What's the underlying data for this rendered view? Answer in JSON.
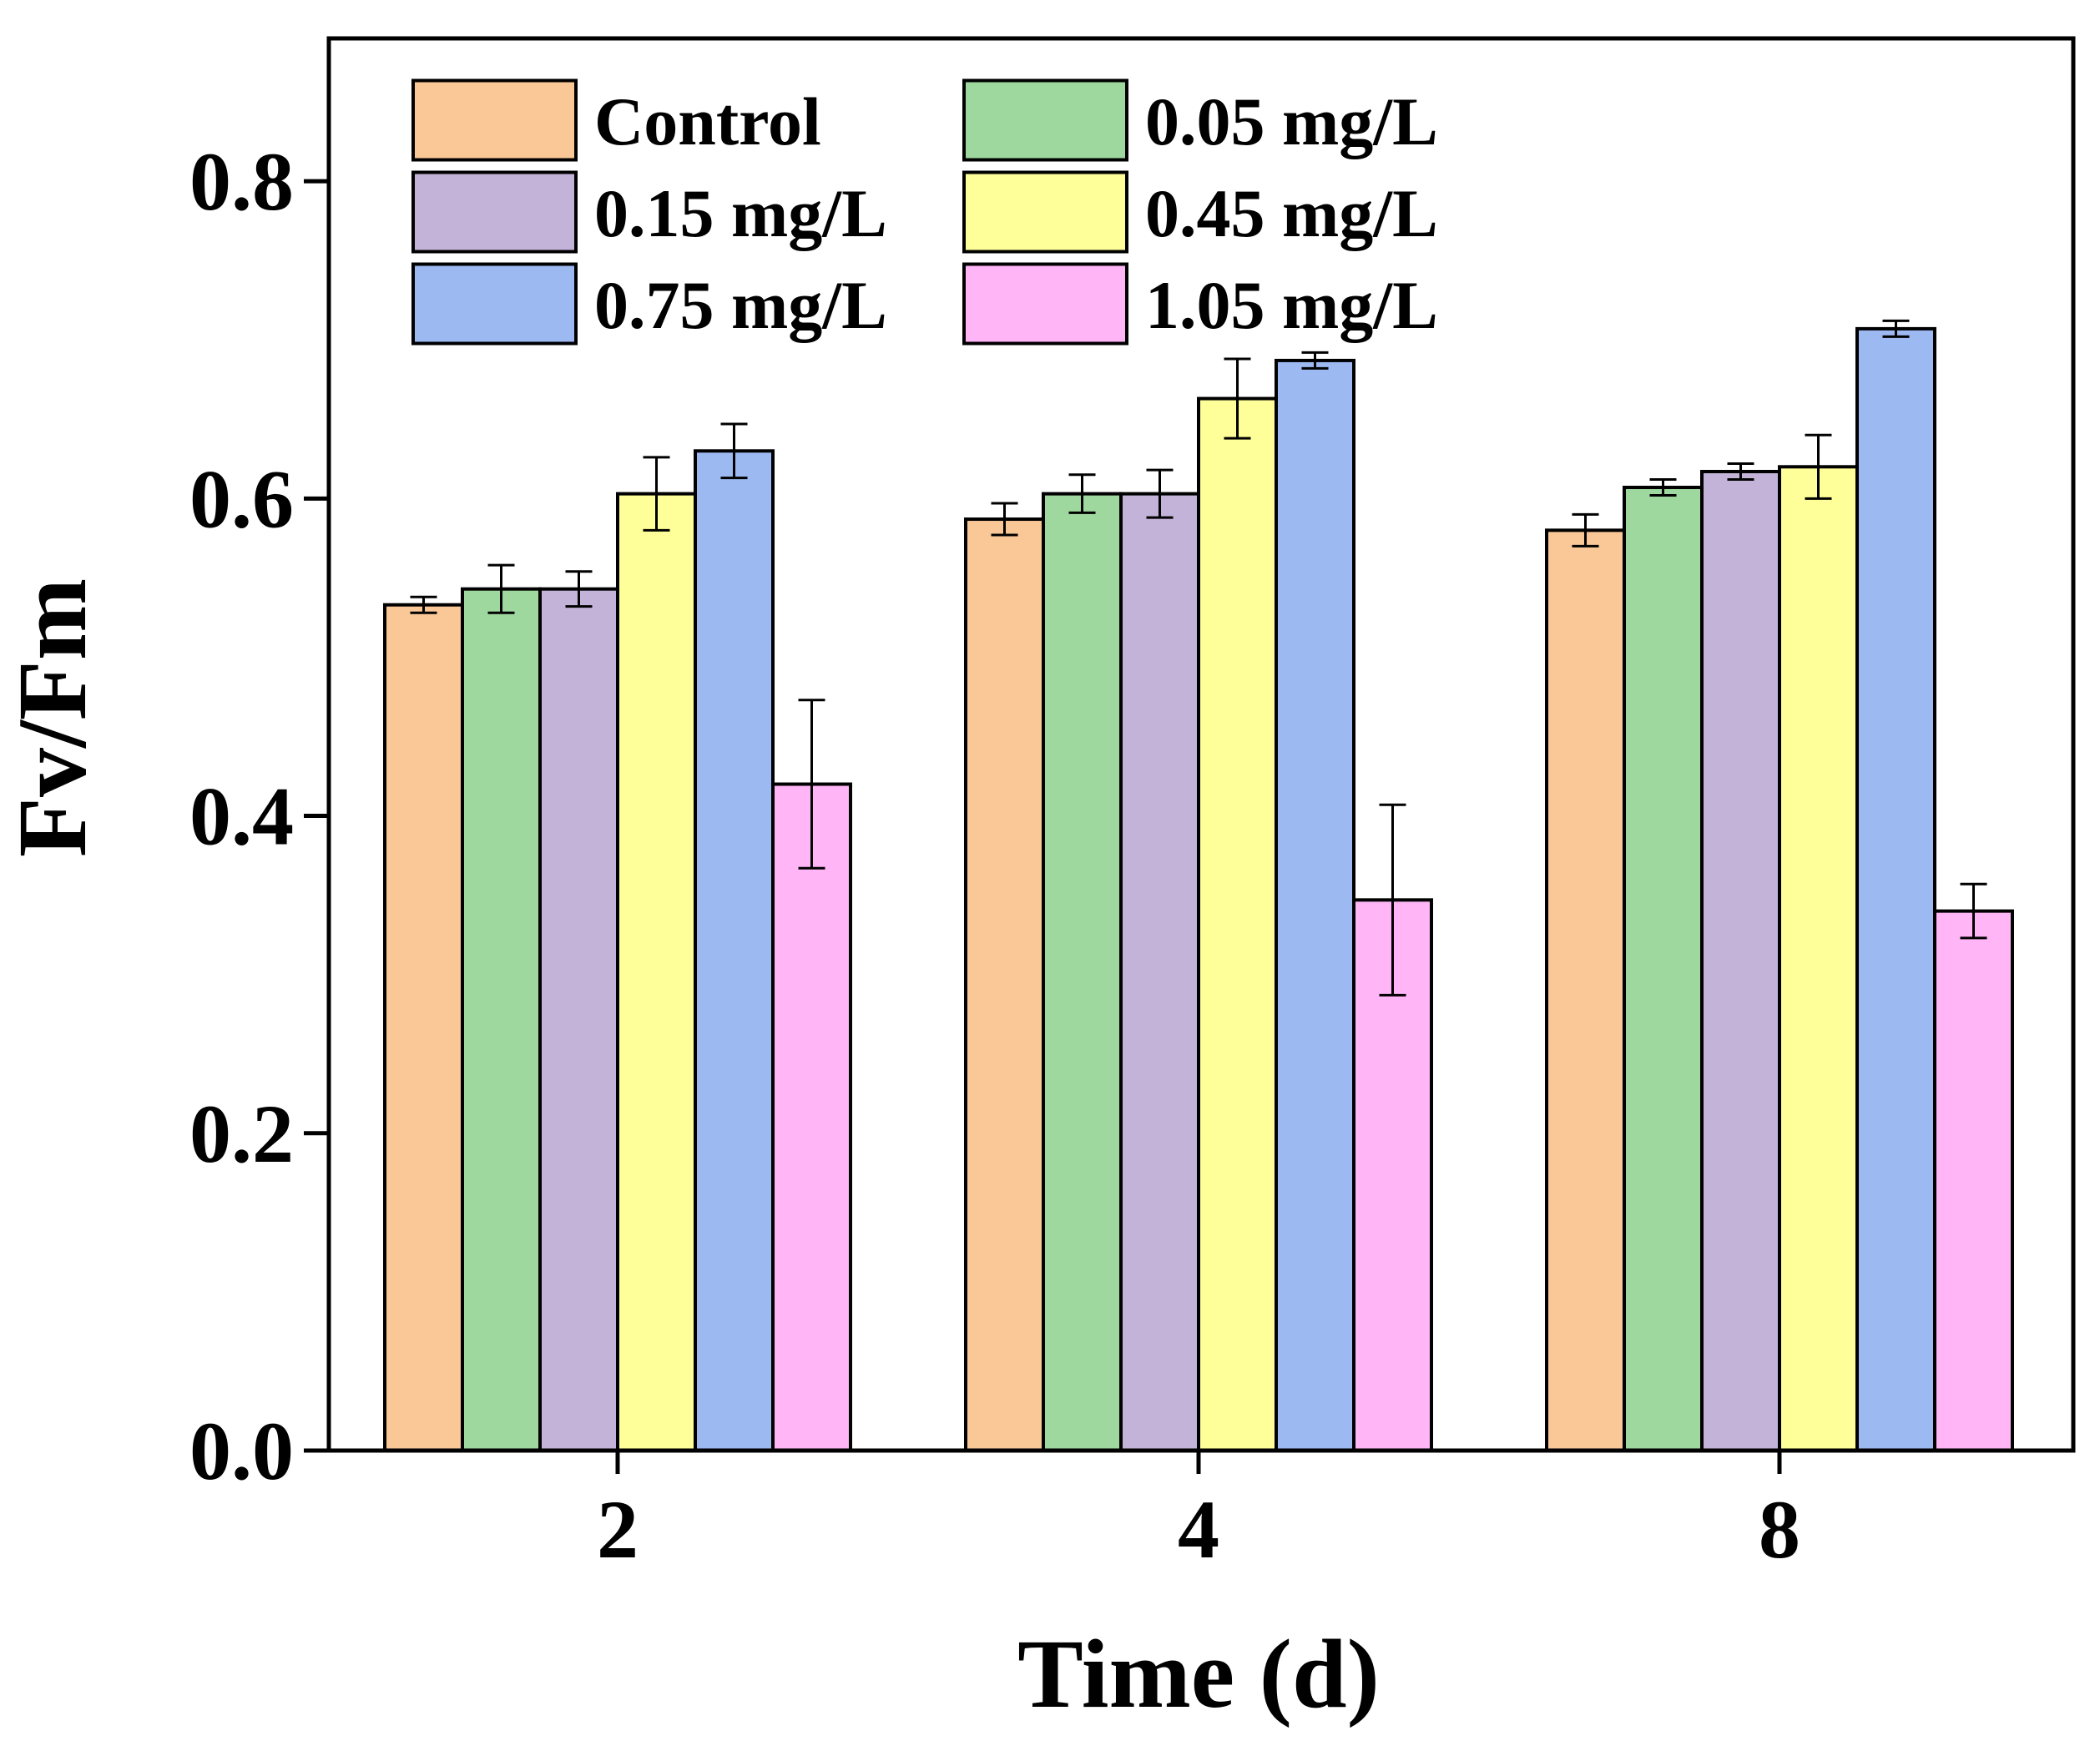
{
  "chart_data": {
    "type": "bar",
    "xlabel": "Time (d)",
    "ylabel": "Fv/Fm",
    "ylim": [
      0,
      0.89
    ],
    "yticks": [
      "0.0",
      "0.2",
      "0.4",
      "0.6",
      "0.8"
    ],
    "ytick_values": [
      0,
      0.2,
      0.4,
      0.6,
      0.8
    ],
    "categories": [
      "2",
      "4",
      "8"
    ],
    "grid": false,
    "legend_position": "top-left",
    "series": [
      {
        "name": "Control",
        "color": "#F9C896",
        "values": [
          0.533,
          0.587,
          0.58
        ],
        "errors": [
          0.005,
          0.01,
          0.01
        ]
      },
      {
        "name": "0.05 mg/L",
        "color": "#9ED89E",
        "values": [
          0.543,
          0.603,
          0.607
        ],
        "errors": [
          0.015,
          0.012,
          0.005
        ]
      },
      {
        "name": "0.15 mg/L",
        "color": "#C3B3D8",
        "values": [
          0.543,
          0.603,
          0.617
        ],
        "errors": [
          0.011,
          0.015,
          0.005
        ]
      },
      {
        "name": "0.45 mg/L",
        "color": "#FFFF99",
        "values": [
          0.603,
          0.663,
          0.62
        ],
        "errors": [
          0.023,
          0.025,
          0.02
        ]
      },
      {
        "name": "0.75 mg/L",
        "color": "#9DB9F2",
        "values": [
          0.63,
          0.687,
          0.707
        ],
        "errors": [
          0.017,
          0.005,
          0.005
        ]
      },
      {
        "name": "1.05 mg/L",
        "color": "#FFB5F6",
        "values": [
          0.42,
          0.347,
          0.34
        ],
        "errors": [
          0.053,
          0.06,
          0.017
        ]
      }
    ]
  }
}
